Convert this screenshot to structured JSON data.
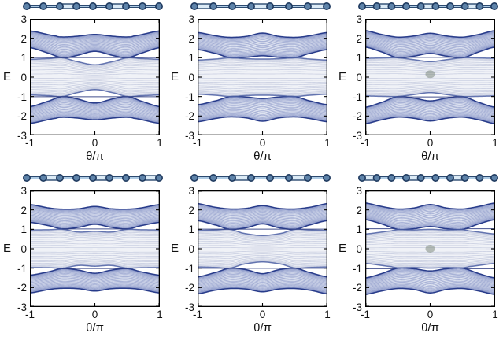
{
  "figure": {
    "rows": 2,
    "cols": 3,
    "background": "#ffffff"
  },
  "colors": {
    "outer_band_line": "rgba(63,84,164,0.50)",
    "outer_band_edge": "rgba(35,55,135,0.95)",
    "outer_band_fill": "rgba(120,140,200,0.16)",
    "mid_band_line": "rgba(142,154,192,0.45)",
    "mid_band_edge": "rgba(72,92,162,0.80)",
    "mid_band_fill": "rgba(172,182,212,0.18)",
    "edge_state_line": "rgba(45,60,130,0.90)",
    "axis": "#000000",
    "blob": "rgba(128,140,128,0.55)",
    "chain_site_fill": "#5e83a9",
    "chain_site_stroke": "#1f3a5f",
    "chain_bond_light": "#aecbe4",
    "chain_bond_dark": "#2c4a70",
    "chain_double_fill": "#dcebf6"
  },
  "chart_data": [
    {
      "type": "line",
      "title": "",
      "xlabel": "θ/π",
      "ylabel": "E",
      "xlim": [
        -1,
        1
      ],
      "ylim": [
        -3,
        3
      ],
      "xticks": [
        -1,
        0,
        1
      ],
      "yticks": [
        3,
        2,
        1,
        0,
        -1,
        -2,
        -3
      ],
      "chain": {
        "sites": 9,
        "double_bonds": [
          3,
          6
        ]
      },
      "bands": {
        "top_upper": [
          [
            -1,
            2.38
          ],
          [
            -0.6,
            2.12
          ],
          [
            -0.5,
            2.07
          ],
          [
            -0.3,
            2.1
          ],
          [
            0,
            2.2
          ],
          [
            0.3,
            2.1
          ],
          [
            0.5,
            2.07
          ],
          [
            0.6,
            2.12
          ],
          [
            1,
            2.38
          ]
        ],
        "top_lower": [
          [
            -1,
            1.52
          ],
          [
            -0.7,
            1.22
          ],
          [
            -0.5,
            1.0
          ],
          [
            -0.3,
            1.1
          ],
          [
            0,
            1.33
          ],
          [
            0.3,
            1.1
          ],
          [
            0.5,
            1.0
          ],
          [
            0.7,
            1.22
          ],
          [
            1,
            1.52
          ]
        ],
        "mid_upper": [
          [
            -1,
            0.92
          ],
          [
            -0.7,
            0.96
          ],
          [
            -0.5,
            1.0
          ],
          [
            -0.3,
            0.82
          ],
          [
            0,
            0.64
          ],
          [
            0.3,
            0.82
          ],
          [
            0.5,
            1.0
          ],
          [
            0.7,
            0.96
          ],
          [
            1,
            0.92
          ]
        ]
      },
      "edge_states": [
        {
          "E": 1.01,
          "from": -1,
          "to": 1
        },
        {
          "E": -1.01,
          "from": -1,
          "to": 1
        }
      ],
      "blob": null
    },
    {
      "type": "line",
      "title": "",
      "xlabel": "θ/π",
      "ylabel": "E",
      "xlim": [
        -1,
        1
      ],
      "ylim": [
        -3,
        3
      ],
      "xticks": [
        -1,
        0,
        1
      ],
      "yticks": [
        3,
        2,
        1,
        0,
        -1,
        -2,
        -3
      ],
      "chain": {
        "sites": 8,
        "double_bonds": [
          1,
          4,
          7
        ]
      },
      "bands": {
        "top_upper": [
          [
            -1,
            2.3
          ],
          [
            -0.7,
            2.12
          ],
          [
            -0.5,
            2.05
          ],
          [
            -0.25,
            2.1
          ],
          [
            0,
            2.27
          ],
          [
            0.25,
            2.1
          ],
          [
            0.5,
            2.05
          ],
          [
            0.7,
            2.12
          ],
          [
            1,
            2.3
          ]
        ],
        "top_lower": [
          [
            -1,
            1.42
          ],
          [
            -0.7,
            1.2
          ],
          [
            -0.5,
            1.0
          ],
          [
            -0.25,
            1.02
          ],
          [
            0,
            1.1
          ],
          [
            0.25,
            1.02
          ],
          [
            0.5,
            1.0
          ],
          [
            0.7,
            1.2
          ],
          [
            1,
            1.42
          ]
        ],
        "mid_upper": [
          [
            -1,
            0.88
          ],
          [
            -0.7,
            0.94
          ],
          [
            -0.5,
            1.0
          ],
          [
            -0.25,
            0.95
          ],
          [
            0,
            0.93
          ],
          [
            0.25,
            0.95
          ],
          [
            0.5,
            1.0
          ],
          [
            0.7,
            0.94
          ],
          [
            1,
            0.88
          ]
        ]
      },
      "edge_states": [],
      "blob": null
    },
    {
      "type": "line",
      "title": "",
      "xlabel": "θ/π",
      "ylabel": "E",
      "xlim": [
        -1,
        1
      ],
      "ylim": [
        -3,
        3
      ],
      "xticks": [
        -1,
        0,
        1
      ],
      "yticks": [
        3,
        2,
        1,
        0,
        -1,
        -2,
        -3
      ],
      "chain": {
        "sites": 10,
        "double_bonds": [
          2,
          5,
          8
        ]
      },
      "bands": {
        "top_upper": [
          [
            -1,
            2.4
          ],
          [
            -0.75,
            2.2
          ],
          [
            -0.5,
            2.06
          ],
          [
            -0.25,
            2.12
          ],
          [
            0,
            2.26
          ],
          [
            0.25,
            2.12
          ],
          [
            0.5,
            2.06
          ],
          [
            0.75,
            2.2
          ],
          [
            1,
            2.4
          ]
        ],
        "top_lower": [
          [
            -1,
            1.55
          ],
          [
            -0.75,
            1.3
          ],
          [
            -0.5,
            1.0
          ],
          [
            -0.25,
            1.08
          ],
          [
            0,
            1.22
          ],
          [
            0.25,
            1.08
          ],
          [
            0.5,
            1.0
          ],
          [
            0.75,
            1.3
          ],
          [
            1,
            1.55
          ]
        ],
        "mid_upper": [
          [
            -1,
            0.97
          ],
          [
            -0.75,
            0.99
          ],
          [
            -0.5,
            1.0
          ],
          [
            -0.25,
            0.9
          ],
          [
            0,
            0.8
          ],
          [
            0.25,
            0.9
          ],
          [
            0.5,
            1.0
          ],
          [
            0.75,
            0.99
          ],
          [
            1,
            0.97
          ]
        ]
      },
      "edge_states": [
        {
          "E": 1.02,
          "from": -0.52,
          "to": 0.52
        },
        {
          "E": -1.02,
          "from": -0.52,
          "to": 0.52
        }
      ],
      "blob": {
        "x": 0,
        "y": 0.15
      }
    },
    {
      "type": "line",
      "title": "",
      "xlabel": "θ/π",
      "ylabel": "E",
      "xlim": [
        -1,
        1
      ],
      "ylim": [
        -3,
        3
      ],
      "xticks": [
        -1,
        0,
        1
      ],
      "yticks": [
        3,
        2,
        1,
        0,
        -1,
        -2,
        -3
      ],
      "chain": {
        "sites": 9,
        "double_bonds": [
          2,
          5,
          8
        ]
      },
      "bands": {
        "top_upper": [
          [
            -1,
            2.28
          ],
          [
            -0.7,
            2.1
          ],
          [
            -0.5,
            2.04
          ],
          [
            -0.25,
            2.06
          ],
          [
            0,
            2.18
          ],
          [
            0.25,
            2.06
          ],
          [
            0.5,
            2.04
          ],
          [
            0.7,
            2.1
          ],
          [
            1,
            2.28
          ]
        ],
        "top_lower": [
          [
            -1,
            1.36
          ],
          [
            -0.7,
            1.18
          ],
          [
            -0.5,
            1.02
          ],
          [
            -0.25,
            1.1
          ],
          [
            0,
            1.26
          ],
          [
            0.25,
            1.1
          ],
          [
            0.5,
            1.02
          ],
          [
            0.7,
            1.18
          ],
          [
            1,
            1.36
          ]
        ],
        "mid_upper": [
          [
            -1,
            0.97
          ],
          [
            -0.7,
            0.98
          ],
          [
            -0.5,
            1.0
          ],
          [
            -0.25,
            0.86
          ],
          [
            0,
            0.9
          ],
          [
            0.25,
            0.86
          ],
          [
            0.5,
            1.0
          ],
          [
            0.7,
            0.98
          ],
          [
            1,
            0.97
          ]
        ]
      },
      "edge_states": [
        {
          "E": 1.02,
          "from": -0.5,
          "to": 0.5
        },
        {
          "E": -1.02,
          "from": -0.5,
          "to": 0.5
        }
      ],
      "blob": null
    },
    {
      "type": "line",
      "title": "",
      "xlabel": "θ/π",
      "ylabel": "E",
      "xlim": [
        -1,
        1
      ],
      "ylim": [
        -3,
        3
      ],
      "xticks": [
        -1,
        0,
        1
      ],
      "yticks": [
        3,
        2,
        1,
        0,
        -1,
        -2,
        -3
      ],
      "chain": {
        "sites": 8,
        "double_bonds": [
          3,
          6
        ]
      },
      "bands": {
        "top_upper": [
          [
            -1,
            2.33
          ],
          [
            -0.75,
            2.15
          ],
          [
            -0.5,
            2.05
          ],
          [
            -0.25,
            2.08
          ],
          [
            0,
            2.22
          ],
          [
            0.25,
            2.08
          ],
          [
            0.5,
            2.05
          ],
          [
            0.75,
            2.15
          ],
          [
            1,
            2.33
          ]
        ],
        "top_lower": [
          [
            -1,
            1.45
          ],
          [
            -0.7,
            1.2
          ],
          [
            -0.5,
            1.0
          ],
          [
            -0.25,
            1.08
          ],
          [
            0,
            1.28
          ],
          [
            0.25,
            1.08
          ],
          [
            0.5,
            1.0
          ],
          [
            0.7,
            1.2
          ],
          [
            1,
            1.45
          ]
        ],
        "mid_upper": [
          [
            -1,
            0.94
          ],
          [
            -0.7,
            0.97
          ],
          [
            -0.5,
            1.0
          ],
          [
            -0.3,
            0.8
          ],
          [
            0,
            0.68
          ],
          [
            0.3,
            0.8
          ],
          [
            0.5,
            1.0
          ],
          [
            0.7,
            0.97
          ],
          [
            1,
            0.94
          ]
        ]
      },
      "edge_states": [
        {
          "E": 1.01,
          "from": -1,
          "to": 1
        },
        {
          "E": -1.01,
          "from": -1,
          "to": 1
        }
      ],
      "blob": null
    },
    {
      "type": "line",
      "title": "",
      "xlabel": "θ/π",
      "ylabel": "E",
      "xlim": [
        -1,
        1
      ],
      "ylim": [
        -3,
        3
      ],
      "xticks": [
        -1,
        0,
        1
      ],
      "yticks": [
        3,
        2,
        1,
        0,
        -1,
        -2,
        -3
      ],
      "chain": {
        "sites": 10,
        "double_bonds": [
          1,
          4,
          7
        ]
      },
      "bands": {
        "top_upper": [
          [
            -1,
            2.36
          ],
          [
            -0.75,
            2.18
          ],
          [
            -0.5,
            2.05
          ],
          [
            -0.25,
            2.1
          ],
          [
            0,
            2.28
          ],
          [
            0.25,
            2.1
          ],
          [
            0.5,
            2.05
          ],
          [
            0.75,
            2.18
          ],
          [
            1,
            2.36
          ]
        ],
        "top_lower": [
          [
            -1,
            1.5
          ],
          [
            -0.75,
            1.28
          ],
          [
            -0.5,
            1.0
          ],
          [
            -0.25,
            1.03
          ],
          [
            0,
            1.14
          ],
          [
            0.25,
            1.03
          ],
          [
            0.5,
            1.0
          ],
          [
            0.75,
            1.28
          ],
          [
            1,
            1.5
          ]
        ],
        "mid_upper": [
          [
            -1,
            0.76
          ],
          [
            -0.6,
            0.92
          ],
          [
            -0.5,
            0.98
          ],
          [
            -0.25,
            0.97
          ],
          [
            0,
            1.0
          ],
          [
            0.25,
            0.97
          ],
          [
            0.5,
            0.98
          ],
          [
            0.6,
            0.92
          ],
          [
            1,
            0.76
          ]
        ]
      },
      "edge_states": [
        {
          "E": 1.03,
          "from": -1,
          "to": -0.55
        },
        {
          "E": 1.03,
          "from": 0.55,
          "to": 1
        },
        {
          "E": -1.03,
          "from": -1,
          "to": -0.55
        },
        {
          "E": -1.03,
          "from": 0.55,
          "to": 1
        }
      ],
      "blob": {
        "x": 0,
        "y": 0.0
      }
    }
  ]
}
